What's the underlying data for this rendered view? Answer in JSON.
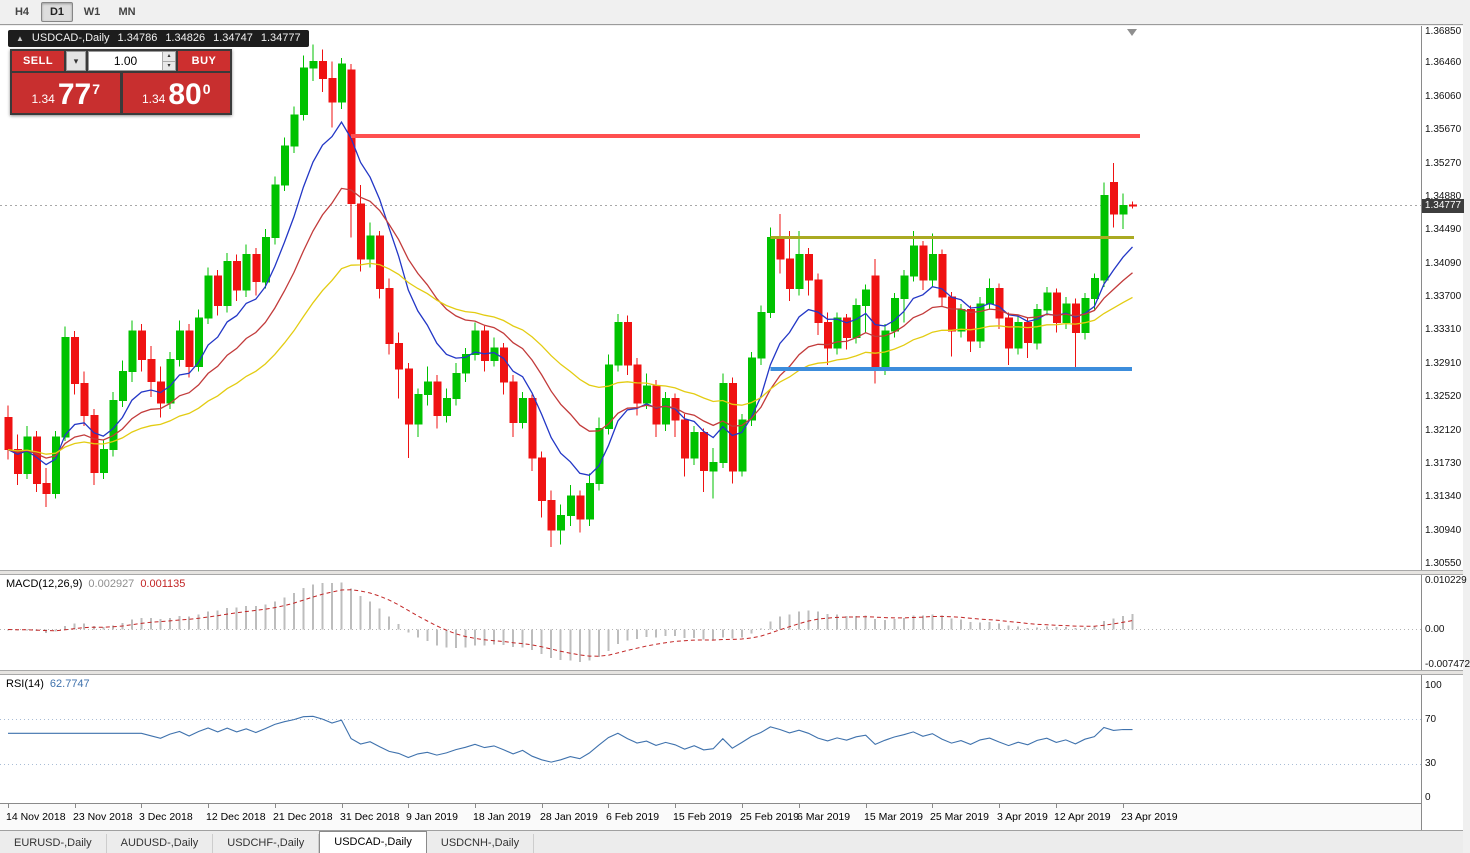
{
  "toolbar": {
    "timeframes": [
      {
        "label": "H4",
        "active": false
      },
      {
        "label": "D1",
        "active": true
      },
      {
        "label": "W1",
        "active": false
      },
      {
        "label": "MN",
        "active": false
      }
    ]
  },
  "chart_header": {
    "symbol": "USDCAD-,Daily",
    "open": "1.34786",
    "high": "1.34826",
    "low": "1.34747",
    "close": "1.34777"
  },
  "trade_panel": {
    "sell": {
      "label": "SELL",
      "price_prefix": "1.34",
      "price_big": "77",
      "price_sup": "7"
    },
    "buy": {
      "label": "BUY",
      "price_prefix": "1.34",
      "price_big": "80",
      "price_sup": "0"
    },
    "volume": {
      "value": "1.00"
    }
  },
  "price_scale": {
    "ticks": [
      "1.36850",
      "1.36460",
      "1.36060",
      "1.35670",
      "1.35270",
      "1.34880",
      "1.34490",
      "1.34090",
      "1.33700",
      "1.33310",
      "1.32910",
      "1.32520",
      "1.32120",
      "1.31730",
      "1.31340",
      "1.30940",
      "1.30550"
    ],
    "current": "1.34777",
    "current_value": 1.34777
  },
  "macd": {
    "label": "MACD(12,26,9)",
    "main_value": "0.002927",
    "signal_value": "0.001135",
    "fast": 12,
    "slow": 26,
    "signal": 9,
    "scale_top": "0.010229",
    "scale_zero": "0.00",
    "scale_bottom": "-0.007472",
    "scale_top_value": 0.010229,
    "scale_bottom_value": -0.007472
  },
  "rsi": {
    "label": "RSI(14)",
    "value": "62.7747",
    "period": 14,
    "scale_labels": [
      "100",
      "70",
      "30",
      "0"
    ],
    "levels": [
      70,
      30
    ]
  },
  "x_axis": {
    "labels": [
      {
        "index": 0,
        "text": "14 Nov 2018"
      },
      {
        "index": 7,
        "text": "23 Nov 2018"
      },
      {
        "index": 14,
        "text": "3 Dec 2018"
      },
      {
        "index": 21,
        "text": "12 Dec 2018"
      },
      {
        "index": 28,
        "text": "21 Dec 2018"
      },
      {
        "index": 35,
        "text": "31 Dec 2018"
      },
      {
        "index": 42,
        "text": "9 Jan 2019"
      },
      {
        "index": 49,
        "text": "18 Jan 2019"
      },
      {
        "index": 56,
        "text": "28 Jan 2019"
      },
      {
        "index": 63,
        "text": "6 Feb 2019"
      },
      {
        "index": 70,
        "text": "15 Feb 2019"
      },
      {
        "index": 77,
        "text": "25 Feb 2019"
      },
      {
        "index": 83,
        "text": "6 Mar 2019"
      },
      {
        "index": 90,
        "text": "15 Mar 2019"
      },
      {
        "index": 97,
        "text": "25 Mar 2019"
      },
      {
        "index": 104,
        "text": "3 Apr 2019"
      },
      {
        "index": 110,
        "text": "12 Apr 2019"
      },
      {
        "index": 117,
        "text": "23 Apr 2019"
      }
    ]
  },
  "tabs": [
    {
      "label": "EURUSD-,Daily",
      "active": false
    },
    {
      "label": "AUDUSD-,Daily",
      "active": false
    },
    {
      "label": "USDCHF-,Daily",
      "active": false
    },
    {
      "label": "USDCAD-,Daily",
      "active": true
    },
    {
      "label": "USDCNH-,Daily",
      "active": false
    }
  ],
  "colors": {
    "bull": "#00c200",
    "bear": "#ef1212",
    "ma_fast": "#2337c6",
    "ma_mid": "#c23b3b",
    "ma_slow": "#e3cc12",
    "macd_hist": "#bdbdbd",
    "macd_signal": "#c22525",
    "rsi_line": "#3f72ad",
    "level_red": "#ff5050",
    "level_olive": "#aaaa22",
    "level_blue": "#3c8ddc",
    "price_tag_bg": "#3d3d3d"
  },
  "chart_data": {
    "type": "candlestick",
    "symbol": "USDCAD",
    "timeframe": "Daily",
    "ylim": [
      1.3055,
      1.3685
    ],
    "moving_averages": [
      {
        "name": "ema-fast",
        "period": 9,
        "color": "#2337c6"
      },
      {
        "name": "ema-mid",
        "period": 18,
        "color": "#c23b3b"
      },
      {
        "name": "ema-slow",
        "period": 36,
        "color": "#e3cc12"
      }
    ],
    "levels": [
      {
        "name": "resistance-red-line",
        "price": 1.356,
        "color": "#ff5050",
        "stroke_width": 4,
        "start_index": 36,
        "end_x": 1140
      },
      {
        "name": "resistance-olive-line",
        "price": 1.344,
        "color": "#aaaa22",
        "stroke_width": 3,
        "start_index": 80,
        "end_x": 1134
      },
      {
        "name": "support-blue-line",
        "price": 1.3285,
        "color": "#3c8ddc",
        "stroke_width": 4,
        "start_index": 80,
        "end_x": 1132
      }
    ],
    "candles": [
      [
        1.3228,
        1.3242,
        1.3178,
        1.319
      ],
      [
        1.319,
        1.3208,
        1.3148,
        1.3162
      ],
      [
        1.3162,
        1.3218,
        1.3155,
        1.3205
      ],
      [
        1.3205,
        1.3212,
        1.314,
        1.315
      ],
      [
        1.315,
        1.3168,
        1.3122,
        1.3138
      ],
      [
        1.3138,
        1.3212,
        1.3132,
        1.3205
      ],
      [
        1.3205,
        1.3335,
        1.32,
        1.3322
      ],
      [
        1.3322,
        1.333,
        1.3255,
        1.3268
      ],
      [
        1.3268,
        1.3282,
        1.3218,
        1.323
      ],
      [
        1.323,
        1.3238,
        1.3148,
        1.3163
      ],
      [
        1.3163,
        1.3202,
        1.3155,
        1.319
      ],
      [
        1.319,
        1.3258,
        1.3182,
        1.3248
      ],
      [
        1.3248,
        1.3295,
        1.324,
        1.3282
      ],
      [
        1.3282,
        1.3342,
        1.327,
        1.333
      ],
      [
        1.333,
        1.3338,
        1.3282,
        1.3296
      ],
      [
        1.3296,
        1.3312,
        1.3252,
        1.327
      ],
      [
        1.327,
        1.3288,
        1.3228,
        1.3245
      ],
      [
        1.3245,
        1.3305,
        1.3238,
        1.3296
      ],
      [
        1.3296,
        1.3342,
        1.3288,
        1.333
      ],
      [
        1.333,
        1.3338,
        1.3275,
        1.3288
      ],
      [
        1.3288,
        1.3355,
        1.3282,
        1.3345
      ],
      [
        1.3345,
        1.3405,
        1.3338,
        1.3395
      ],
      [
        1.3395,
        1.3402,
        1.3348,
        1.336
      ],
      [
        1.336,
        1.3422,
        1.3352,
        1.3412
      ],
      [
        1.3412,
        1.342,
        1.3365,
        1.3378
      ],
      [
        1.3378,
        1.3432,
        1.337,
        1.342
      ],
      [
        1.342,
        1.3428,
        1.3372,
        1.3388
      ],
      [
        1.3388,
        1.345,
        1.338,
        1.344
      ],
      [
        1.344,
        1.3512,
        1.3432,
        1.3502
      ],
      [
        1.3502,
        1.3558,
        1.3495,
        1.3548
      ],
      [
        1.3548,
        1.3595,
        1.354,
        1.3585
      ],
      [
        1.3585,
        1.3655,
        1.3578,
        1.364
      ],
      [
        1.364,
        1.3668,
        1.3625,
        1.3648
      ],
      [
        1.3648,
        1.3662,
        1.3612,
        1.3628
      ],
      [
        1.3628,
        1.3648,
        1.357,
        1.36
      ],
      [
        1.36,
        1.3652,
        1.3592,
        1.3645
      ],
      [
        1.3638,
        1.3645,
        1.344,
        1.348
      ],
      [
        1.348,
        1.3502,
        1.34,
        1.3415
      ],
      [
        1.3415,
        1.3458,
        1.3405,
        1.3442
      ],
      [
        1.3442,
        1.3448,
        1.3368,
        1.338
      ],
      [
        1.338,
        1.3392,
        1.3302,
        1.3315
      ],
      [
        1.3315,
        1.3328,
        1.325,
        1.3285
      ],
      [
        1.3285,
        1.3292,
        1.318,
        1.322
      ],
      [
        1.322,
        1.3262,
        1.3205,
        1.3255
      ],
      [
        1.3255,
        1.3288,
        1.3242,
        1.327
      ],
      [
        1.327,
        1.3278,
        1.3215,
        1.323
      ],
      [
        1.323,
        1.3262,
        1.3222,
        1.325
      ],
      [
        1.325,
        1.3292,
        1.3242,
        1.328
      ],
      [
        1.328,
        1.331,
        1.327,
        1.3302
      ],
      [
        1.3302,
        1.334,
        1.3295,
        1.333
      ],
      [
        1.333,
        1.3336,
        1.3282,
        1.3295
      ],
      [
        1.3295,
        1.3322,
        1.3288,
        1.331
      ],
      [
        1.331,
        1.3316,
        1.3255,
        1.327
      ],
      [
        1.327,
        1.3278,
        1.3205,
        1.3222
      ],
      [
        1.3222,
        1.3258,
        1.3215,
        1.325
      ],
      [
        1.325,
        1.3255,
        1.3165,
        1.318
      ],
      [
        1.318,
        1.3188,
        1.311,
        1.313
      ],
      [
        1.313,
        1.3142,
        1.3075,
        1.3095
      ],
      [
        1.3095,
        1.3125,
        1.3078,
        1.3112
      ],
      [
        1.3112,
        1.3148,
        1.31,
        1.3135
      ],
      [
        1.3135,
        1.3142,
        1.3092,
        1.3108
      ],
      [
        1.3108,
        1.3162,
        1.31,
        1.315
      ],
      [
        1.315,
        1.3228,
        1.3142,
        1.3215
      ],
      [
        1.3215,
        1.3302,
        1.3208,
        1.329
      ],
      [
        1.329,
        1.335,
        1.3282,
        1.334
      ],
      [
        1.334,
        1.3348,
        1.3278,
        1.329
      ],
      [
        1.329,
        1.3298,
        1.323,
        1.3245
      ],
      [
        1.3245,
        1.328,
        1.3238,
        1.3265
      ],
      [
        1.3265,
        1.3272,
        1.3205,
        1.322
      ],
      [
        1.322,
        1.3258,
        1.3212,
        1.325
      ],
      [
        1.325,
        1.3256,
        1.3205,
        1.3225
      ],
      [
        1.3225,
        1.3232,
        1.3158,
        1.318
      ],
      [
        1.318,
        1.3218,
        1.3172,
        1.321
      ],
      [
        1.321,
        1.3215,
        1.314,
        1.3165
      ],
      [
        1.3165,
        1.3192,
        1.3132,
        1.3175
      ],
      [
        1.3175,
        1.328,
        1.3168,
        1.3268
      ],
      [
        1.3268,
        1.3275,
        1.315,
        1.3165
      ],
      [
        1.3165,
        1.3232,
        1.3158,
        1.3225
      ],
      [
        1.3225,
        1.3305,
        1.3218,
        1.3298
      ],
      [
        1.3298,
        1.336,
        1.329,
        1.3352
      ],
      [
        1.3352,
        1.3452,
        1.3345,
        1.344
      ],
      [
        1.344,
        1.3468,
        1.3398,
        1.3415
      ],
      [
        1.3415,
        1.3448,
        1.3365,
        1.338
      ],
      [
        1.338,
        1.3448,
        1.3372,
        1.342
      ],
      [
        1.342,
        1.3428,
        1.3372,
        1.339
      ],
      [
        1.339,
        1.3398,
        1.3325,
        1.334
      ],
      [
        1.334,
        1.3352,
        1.329,
        1.331
      ],
      [
        1.331,
        1.3352,
        1.3302,
        1.3345
      ],
      [
        1.3345,
        1.335,
        1.3308,
        1.3322
      ],
      [
        1.3322,
        1.3368,
        1.3315,
        1.336
      ],
      [
        1.336,
        1.3385,
        1.3328,
        1.3378
      ],
      [
        1.3395,
        1.3415,
        1.3268,
        1.3285
      ],
      [
        1.3285,
        1.3338,
        1.3278,
        1.333
      ],
      [
        1.333,
        1.3375,
        1.3322,
        1.3368
      ],
      [
        1.3368,
        1.3402,
        1.334,
        1.3395
      ],
      [
        1.3395,
        1.3448,
        1.3388,
        1.343
      ],
      [
        1.343,
        1.3436,
        1.3378,
        1.339
      ],
      [
        1.339,
        1.3445,
        1.3382,
        1.342
      ],
      [
        1.342,
        1.3426,
        1.3358,
        1.337
      ],
      [
        1.337,
        1.3376,
        1.33,
        1.333
      ],
      [
        1.333,
        1.3362,
        1.3322,
        1.3355
      ],
      [
        1.3355,
        1.336,
        1.3305,
        1.3318
      ],
      [
        1.3318,
        1.337,
        1.331,
        1.3362
      ],
      [
        1.3362,
        1.3392,
        1.3355,
        1.338
      ],
      [
        1.338,
        1.3386,
        1.3332,
        1.3345
      ],
      [
        1.3345,
        1.3352,
        1.329,
        1.331
      ],
      [
        1.331,
        1.3348,
        1.3302,
        1.334
      ],
      [
        1.334,
        1.3346,
        1.3298,
        1.3316
      ],
      [
        1.3316,
        1.3362,
        1.3308,
        1.3355
      ],
      [
        1.3355,
        1.3382,
        1.3348,
        1.3375
      ],
      [
        1.3375,
        1.338,
        1.3328,
        1.334
      ],
      [
        1.334,
        1.337,
        1.3332,
        1.3362
      ],
      [
        1.3362,
        1.3368,
        1.3285,
        1.3328
      ],
      [
        1.3328,
        1.3375,
        1.332,
        1.3368
      ],
      [
        1.3368,
        1.3398,
        1.3355,
        1.3392
      ],
      [
        1.339,
        1.3505,
        1.3382,
        1.349
      ],
      [
        1.3505,
        1.3528,
        1.3452,
        1.3468
      ],
      [
        1.3468,
        1.3492,
        1.345,
        1.3478
      ],
      [
        1.34786,
        1.34826,
        1.34747,
        1.34777
      ]
    ]
  }
}
